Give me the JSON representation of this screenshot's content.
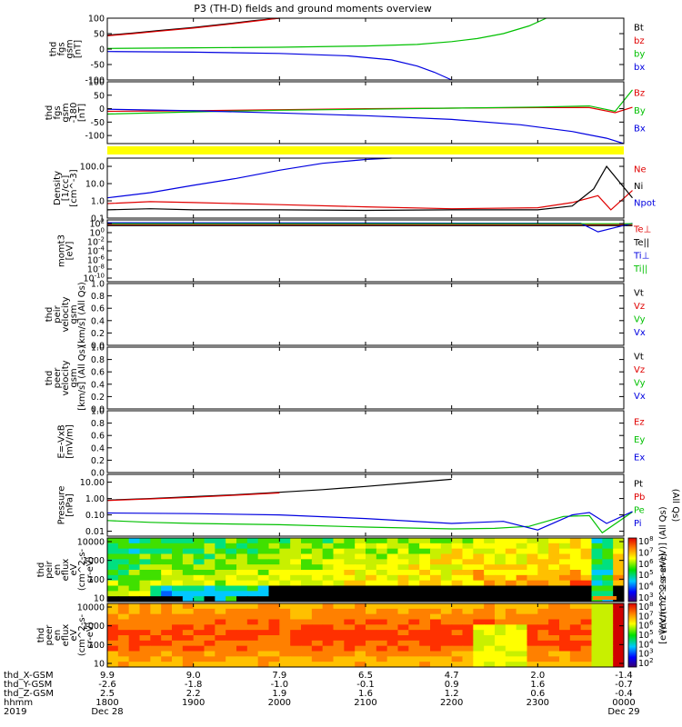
{
  "title": "P3 (TH-D) fields and ground moments overview",
  "colors": {
    "black": "#000000",
    "red": "#e00000",
    "green": "#00c000",
    "blue": "#0000e0",
    "yellow": "#ffff00"
  },
  "chart_data": [
    {
      "type": "line",
      "id": "fgs",
      "ylabel_lines": [
        "thd",
        "fgs",
        "gsm",
        "[nT]"
      ],
      "yticks": [
        "100",
        "50",
        "0",
        "-50",
        "-100"
      ],
      "ylim": [
        -100,
        100
      ],
      "scale": "linear",
      "legend": [
        "Bt",
        "bz",
        "by",
        "bx"
      ],
      "series": [
        {
          "name": "Bt",
          "color": "black",
          "t": [
            0,
            0.3,
            0.6,
            1.0,
            1.4,
            1.7,
            2.0
          ],
          "v": [
            45,
            52,
            60,
            70,
            82,
            92,
            100
          ]
        },
        {
          "name": "bz",
          "color": "red",
          "t": [
            0,
            0.3,
            0.6,
            1.0,
            1.4,
            1.7,
            2.0
          ],
          "v": [
            43,
            50,
            58,
            68,
            80,
            90,
            100
          ]
        },
        {
          "name": "by",
          "color": "green",
          "t": [
            0,
            1.0,
            2.0,
            3.0,
            3.6,
            4.0,
            4.3,
            4.6,
            4.9,
            5.1
          ],
          "v": [
            2,
            4,
            6,
            10,
            15,
            24,
            34,
            50,
            75,
            100
          ]
        },
        {
          "name": "bx",
          "color": "blue",
          "t": [
            0,
            1.0,
            2.0,
            2.8,
            3.3,
            3.6,
            3.8,
            4.0
          ],
          "v": [
            -8,
            -10,
            -14,
            -22,
            -35,
            -55,
            -75,
            -100
          ]
        }
      ]
    },
    {
      "type": "line",
      "id": "fgs-gse",
      "ylabel_lines": [
        "thd",
        "fgs",
        "gsm",
        "-180",
        "[nT]"
      ],
      "yticks": [
        "100",
        "50",
        "0",
        "-50",
        "-100"
      ],
      "ylim": [
        -130,
        100
      ],
      "scale": "linear",
      "legend": [
        "Bz",
        "By",
        "Bx"
      ],
      "series": [
        {
          "name": "Bz",
          "color": "red",
          "t": [
            0,
            1.0,
            2.0,
            3.0,
            4.0,
            5.0,
            5.6,
            5.9,
            6.1
          ],
          "v": [
            -10,
            -8,
            -4,
            0,
            2,
            4,
            4,
            -15,
            5
          ]
        },
        {
          "name": "By",
          "color": "green",
          "t": [
            0,
            1.0,
            2.0,
            3.0,
            4.0,
            5.0,
            5.6,
            5.9,
            6.1
          ],
          "v": [
            -20,
            -12,
            -6,
            -2,
            2,
            6,
            10,
            -10,
            70
          ]
        },
        {
          "name": "Bx",
          "color": "blue",
          "t": [
            0,
            1.0,
            2.0,
            3.0,
            4.0,
            4.8,
            5.4,
            5.8,
            6.0
          ],
          "v": [
            -2,
            -8,
            -16,
            -26,
            -40,
            -60,
            -85,
            -110,
            -130
          ]
        }
      ]
    },
    {
      "type": "line",
      "id": "density",
      "ylabel_lines": [
        "Density",
        "[1/cc]",
        "[cm^-3]"
      ],
      "yticks": [
        "100.0",
        "10.0",
        "1.0",
        "0.1"
      ],
      "ylim": [
        0.1,
        300
      ],
      "scale": "log",
      "legend": [
        "Ne",
        "Ni",
        "Npot"
      ],
      "series": [
        {
          "name": "Ne",
          "color": "red",
          "t": [
            0,
            0.5,
            1.0,
            2.0,
            3.0,
            4.0,
            5.0,
            5.4,
            5.7,
            5.85,
            6.1
          ],
          "v": [
            0.7,
            0.9,
            0.8,
            0.6,
            0.45,
            0.35,
            0.4,
            0.8,
            2.0,
            0.3,
            4.0
          ]
        },
        {
          "name": "Ni",
          "color": "black",
          "t": [
            0,
            0.5,
            1.0,
            2.0,
            3.0,
            4.0,
            5.0,
            5.4,
            5.65,
            5.8,
            6.1
          ],
          "v": [
            0.3,
            0.35,
            0.3,
            0.3,
            0.28,
            0.3,
            0.3,
            0.5,
            5,
            100,
            1.5
          ]
        },
        {
          "name": "Npot",
          "color": "blue",
          "t": [
            0,
            0.5,
            1.0,
            1.5,
            2.0,
            2.5,
            3.0,
            3.3
          ],
          "v": [
            1.5,
            3,
            8,
            20,
            60,
            150,
            250,
            300
          ]
        }
      ]
    },
    {
      "type": "line",
      "id": "moms",
      "ylabel_lines": [
        "momt3",
        "[eV]"
      ],
      "yticks": [
        "10^2",
        "10^0",
        "10^-2",
        "10^-4",
        "10^-6",
        "10^-8",
        "10^-10"
      ],
      "ylim": [
        -10,
        3
      ],
      "scale": "log-exponent",
      "legend": [
        "Te⊥",
        "Te||",
        "Ti⊥",
        "Ti||"
      ],
      "series": [
        {
          "name": "Te⊥",
          "color": "red",
          "t": [
            0,
            6.1
          ],
          "v": [
            2,
            2
          ]
        },
        {
          "name": "Te||",
          "color": "black",
          "t": [
            0,
            6.1
          ],
          "v": [
            1.8,
            1.8
          ]
        },
        {
          "name": "Ti⊥",
          "color": "blue",
          "t": [
            0,
            5.5,
            5.7,
            6.1
          ],
          "v": [
            2.4,
            2.3,
            0.5,
            2.3
          ]
        },
        {
          "name": "Ti||",
          "color": "green",
          "t": [
            0,
            6.1
          ],
          "v": [
            2.2,
            2.2
          ]
        }
      ]
    },
    {
      "type": "line",
      "id": "peir-vel",
      "ylabel_lines": [
        "thd",
        "peir",
        "velocity",
        "gsm",
        "[km/s] (All Qs)"
      ],
      "yticks": [
        "1.0",
        "0.8",
        "0.6",
        "0.4",
        "0.2",
        "0.0"
      ],
      "ylim": [
        0,
        1
      ],
      "scale": "linear",
      "legend": [
        "Vt",
        "Vz",
        "Vy",
        "Vx"
      ],
      "series": []
    },
    {
      "type": "line",
      "id": "peer-vel",
      "ylabel_lines": [
        "thd",
        "peer",
        "velocity",
        "gsm",
        "[km/s] (All Qs)"
      ],
      "yticks": [
        "1.0",
        "0.8",
        "0.6",
        "0.4",
        "0.2",
        "0.0"
      ],
      "ylim": [
        0,
        1
      ],
      "scale": "linear",
      "legend": [
        "Vt",
        "Vz",
        "Vy",
        "Vx"
      ],
      "series": []
    },
    {
      "type": "line",
      "id": "efield",
      "ylabel_lines": [
        "E=-VxB",
        "[mV/m]"
      ],
      "yticks": [
        "1.0",
        "0.8",
        "0.6",
        "0.4",
        "0.2",
        "0.0"
      ],
      "ylim": [
        0,
        1
      ],
      "scale": "linear",
      "legend": [
        "Ez",
        "Ey",
        "Ex"
      ],
      "series": []
    },
    {
      "type": "line",
      "id": "pressure",
      "ylabel_lines": [
        "Pressure",
        "[nPa]"
      ],
      "yticks": [
        "10.00",
        "1.00",
        "0.10",
        "0.01"
      ],
      "ylim": [
        0.005,
        30
      ],
      "scale": "log",
      "legend": [
        "Pt",
        "Pb",
        "Pe",
        "Pi"
      ],
      "legend_note": "(All Qs)",
      "series": [
        {
          "name": "Pt",
          "color": "black",
          "t": [
            0,
            0.5,
            1.0,
            1.5,
            2.0,
            2.5,
            3.0,
            3.5,
            4.0
          ],
          "v": [
            0.8,
            1.0,
            1.3,
            1.7,
            2.4,
            3.5,
            5.5,
            9,
            15
          ]
        },
        {
          "name": "Pb",
          "color": "red",
          "t": [
            0,
            0.5,
            1.0,
            1.5,
            2.0
          ],
          "v": [
            0.75,
            0.95,
            1.2,
            1.6,
            2.2
          ]
        },
        {
          "name": "Pe",
          "color": "green",
          "t": [
            0,
            0.5,
            1.0,
            2.0,
            3.0,
            4.0,
            4.5,
            4.9,
            5.3,
            5.6,
            5.75,
            6.1
          ],
          "v": [
            0.045,
            0.035,
            0.03,
            0.025,
            0.018,
            0.014,
            0.015,
            0.02,
            0.08,
            0.09,
            0.008,
            0.15
          ]
        },
        {
          "name": "Pi",
          "color": "blue",
          "t": [
            0,
            1.0,
            2.0,
            3.0,
            4.0,
            4.6,
            5.0,
            5.4,
            5.6,
            5.8,
            6.1
          ],
          "v": [
            0.13,
            0.12,
            0.1,
            0.06,
            0.03,
            0.04,
            0.012,
            0.1,
            0.14,
            0.03,
            0.16
          ]
        }
      ]
    },
    {
      "type": "heatmap",
      "id": "peir-eflux",
      "ylabel_lines": [
        "thd",
        "peir",
        "en",
        "eflux",
        "eV",
        "(cm^2-s-",
        "sr-eV)"
      ],
      "yticks": [
        "10000",
        "1000",
        "100",
        "10"
      ],
      "scale": "log",
      "colorbar": {
        "label": "[eV/(cm^2-s-sr-eV)] (All Qs)",
        "ticks": [
          "10^8",
          "10^7",
          "10^6",
          "10^5",
          "10^4",
          "10^3"
        ]
      }
    },
    {
      "type": "heatmap",
      "id": "peer-eflux",
      "ylabel_lines": [
        "thd",
        "peer",
        "en",
        "eflux",
        "eV",
        "(cm^2-s-",
        "sr-eV)"
      ],
      "yticks": [
        "10000",
        "1000",
        "100",
        "10"
      ],
      "scale": "log",
      "colorbar": {
        "label": "[eV/(cm^2-s-sr-eV)]",
        "ticks": [
          "10^8",
          "10^7",
          "10^6",
          "10^5",
          "10^4",
          "10^3",
          "10^2"
        ]
      }
    }
  ],
  "xaxis": {
    "rows": [
      {
        "label": "thd_X-GSM",
        "values": [
          "9.9",
          "9.0",
          "7.9",
          "6.5",
          "4.7",
          "2.0",
          "-1.4"
        ]
      },
      {
        "label": "thd_Y-GSM",
        "values": [
          "-2.6",
          "-1.8",
          "-1.0",
          "-0.1",
          "0.9",
          "1.6",
          "-0.7"
        ]
      },
      {
        "label": "thd_Z-GSM",
        "values": [
          "2.5",
          "2.2",
          "1.9",
          "1.6",
          "1.2",
          "0.6",
          "-0.4"
        ]
      },
      {
        "label": "hhmm",
        "values": [
          "1800",
          "1900",
          "2000",
          "2100",
          "2200",
          "2300",
          "0000"
        ]
      }
    ],
    "year": "2019",
    "start_date": "Dec 28",
    "end_date": "Dec 29"
  }
}
